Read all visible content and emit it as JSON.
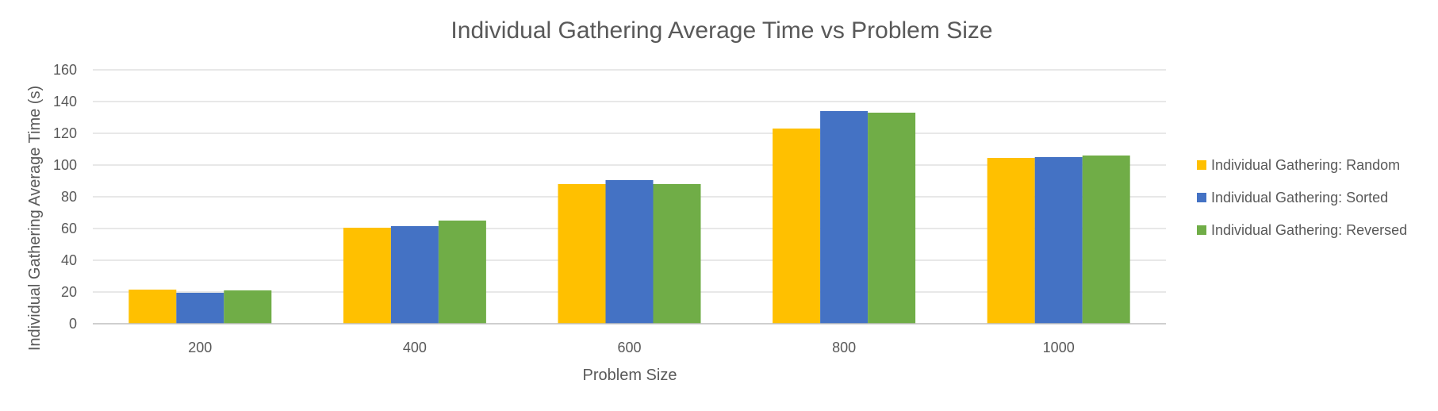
{
  "chart_data": {
    "type": "bar",
    "title": "Individual Gathering Average Time vs Problem Size",
    "xlabel": "Problem Size",
    "ylabel": "Individual Gathering Average Time (s)",
    "categories": [
      "200",
      "400",
      "600",
      "800",
      "1000"
    ],
    "ylim": [
      0,
      160
    ],
    "yticks": [
      0,
      20,
      40,
      60,
      80,
      100,
      120,
      140,
      160
    ],
    "grid": true,
    "legend_position": "right",
    "series": [
      {
        "name": "Individual Gathering: Random",
        "color": "#ffc000",
        "values": [
          21.5,
          60.5,
          88,
          123,
          104.5
        ]
      },
      {
        "name": "Individual Gathering: Sorted",
        "color": "#4472c4",
        "values": [
          19.5,
          61.5,
          90.5,
          134,
          105
        ]
      },
      {
        "name": "Individual Gathering: Reversed",
        "color": "#70ad47",
        "values": [
          21,
          65,
          88,
          133,
          106
        ]
      }
    ]
  }
}
